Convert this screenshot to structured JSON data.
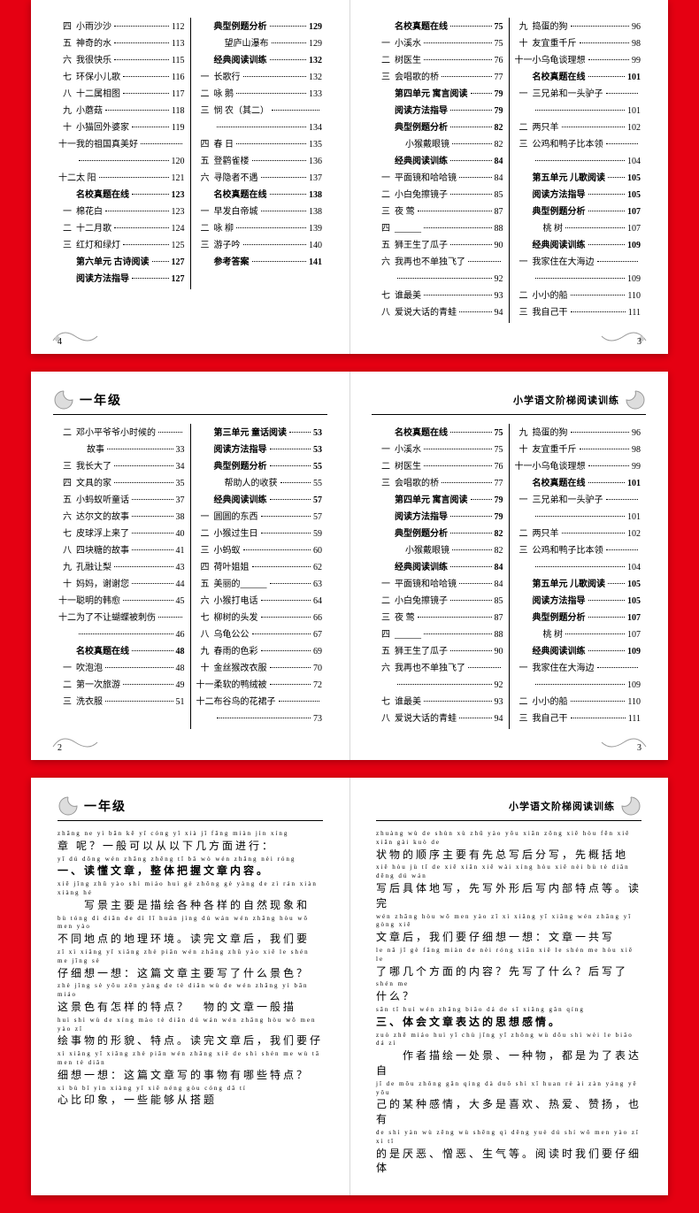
{
  "bg_color": "#e50012",
  "page_bg": "#ffffff",
  "spread1": {
    "left": {
      "page_num": "4",
      "col1": [
        {
          "n": "四",
          "t": "小雨沙沙",
          "p": "112"
        },
        {
          "n": "五",
          "t": "神奇的水",
          "p": "113"
        },
        {
          "n": "六",
          "t": "我很快乐",
          "p": "115"
        },
        {
          "n": "七",
          "t": "环保小儿歌",
          "p": "116"
        },
        {
          "n": "八",
          "t": "十二属相图",
          "p": "117"
        },
        {
          "n": "九",
          "t": "小蘑菇",
          "p": "118"
        },
        {
          "n": "十",
          "t": "小猫回外婆家",
          "p": "119"
        },
        {
          "n": "十一",
          "t": "我的祖国真美好",
          "p": ""
        },
        {
          "n": "",
          "t": "",
          "p": "120"
        },
        {
          "n": "十二",
          "t": "太 阳",
          "p": "121"
        },
        {
          "n": "",
          "t": "名校真题在线",
          "p": "123",
          "bold": true
        },
        {
          "n": "一",
          "t": "棉花白",
          "p": "123"
        },
        {
          "n": "二",
          "t": "十二月歌",
          "p": "124"
        },
        {
          "n": "三",
          "t": "红灯和绿灯",
          "p": "125"
        },
        {
          "n": "",
          "t": "第六单元 古诗阅读",
          "p": "127",
          "bold": true
        },
        {
          "n": "",
          "t": "阅读方法指导",
          "p": "127",
          "bold": true
        }
      ],
      "col2": [
        {
          "n": "",
          "t": "典型例题分析",
          "p": "129",
          "bold": true
        },
        {
          "n": "",
          "t": "望庐山瀑布",
          "p": "129",
          "indent": true
        },
        {
          "n": "",
          "t": "经典阅读训练",
          "p": "132",
          "bold": true
        },
        {
          "n": "一",
          "t": "长歌行",
          "p": "132"
        },
        {
          "n": "二",
          "t": "咏 鹅",
          "p": "133"
        },
        {
          "n": "三",
          "t": "悯 农（其二）",
          "p": ""
        },
        {
          "n": "",
          "t": "",
          "p": "134"
        },
        {
          "n": "四",
          "t": "春 日",
          "p": "135"
        },
        {
          "n": "五",
          "t": "登鹳雀楼",
          "p": "136"
        },
        {
          "n": "六",
          "t": "寻隐者不遇",
          "p": "137"
        },
        {
          "n": "",
          "t": "名校真题在线",
          "p": "138",
          "bold": true
        },
        {
          "n": "一",
          "t": "早发白帝城",
          "p": "138"
        },
        {
          "n": "二",
          "t": "咏 柳",
          "p": "139"
        },
        {
          "n": "三",
          "t": "游子吟",
          "p": "140"
        },
        {
          "n": "",
          "t": "参考答案",
          "p": "141",
          "bold": true
        }
      ]
    },
    "right": {
      "page_num": "3",
      "col1": [
        {
          "n": "",
          "t": "名校真题在线",
          "p": "75",
          "bold": true
        },
        {
          "n": "一",
          "t": "小溪水",
          "p": "75"
        },
        {
          "n": "二",
          "t": "树医生",
          "p": "76"
        },
        {
          "n": "三",
          "t": "会唱歌的桥",
          "p": "77"
        },
        {
          "n": "",
          "t": "第四单元 寓言阅读",
          "p": "79",
          "bold": true
        },
        {
          "n": "",
          "t": "阅读方法指导",
          "p": "79",
          "bold": true
        },
        {
          "n": "",
          "t": "典型例题分析",
          "p": "82",
          "bold": true
        },
        {
          "n": "",
          "t": "小猴戴眼镜",
          "p": "82",
          "indent": true
        },
        {
          "n": "",
          "t": "经典阅读训练",
          "p": "84",
          "bold": true
        },
        {
          "n": "一",
          "t": "平面镜和哈哈镜",
          "p": "84"
        },
        {
          "n": "二",
          "t": "小白兔擦镜子",
          "p": "85"
        },
        {
          "n": "三",
          "t": "夜 莺",
          "p": "87"
        },
        {
          "n": "四",
          "t": "______",
          "p": "88"
        },
        {
          "n": "五",
          "t": "狮王生了瓜子",
          "p": "90"
        },
        {
          "n": "六",
          "t": "我再也不单独飞了",
          "p": ""
        },
        {
          "n": "",
          "t": "",
          "p": "92"
        },
        {
          "n": "七",
          "t": "谁最美",
          "p": "93"
        },
        {
          "n": "八",
          "t": "爱说大话的青蛙",
          "p": "94"
        }
      ],
      "col2": [
        {
          "n": "九",
          "t": "捣蛋的狗",
          "p": "96"
        },
        {
          "n": "十",
          "t": "友宜重千斤",
          "p": "98"
        },
        {
          "n": "十一",
          "t": "小乌龟谈理想",
          "p": "99"
        },
        {
          "n": "",
          "t": "名校真题在线",
          "p": "101",
          "bold": true
        },
        {
          "n": "一",
          "t": "三兄弟和一头驴子",
          "p": ""
        },
        {
          "n": "",
          "t": "",
          "p": "101"
        },
        {
          "n": "二",
          "t": "两只羊",
          "p": "102"
        },
        {
          "n": "三",
          "t": "公鸡和鸭子比本领",
          "p": ""
        },
        {
          "n": "",
          "t": "",
          "p": "104"
        },
        {
          "n": "",
          "t": "第五单元 儿歌阅读",
          "p": "105",
          "bold": true
        },
        {
          "n": "",
          "t": "阅读方法指导",
          "p": "105",
          "bold": true
        },
        {
          "n": "",
          "t": "典型例题分析",
          "p": "107",
          "bold": true
        },
        {
          "n": "",
          "t": "桃 树",
          "p": "107",
          "indent": true
        },
        {
          "n": "",
          "t": "经典阅读训练",
          "p": "109",
          "bold": true
        },
        {
          "n": "一",
          "t": "我家住在大海边",
          "p": ""
        },
        {
          "n": "",
          "t": "",
          "p": "109"
        },
        {
          "n": "二",
          "t": "小小的船",
          "p": "110"
        },
        {
          "n": "三",
          "t": "我自己干",
          "p": "111"
        }
      ]
    }
  },
  "spread2": {
    "left": {
      "header": "一年级",
      "page_num": "2",
      "col1": [
        {
          "n": "二",
          "t": "邓小平爷爷小时候的",
          "p": ""
        },
        {
          "n": "",
          "t": "故事",
          "p": "33",
          "indent": true
        },
        {
          "n": "三",
          "t": "我长大了",
          "p": "34"
        },
        {
          "n": "四",
          "t": "文具的家",
          "p": "35"
        },
        {
          "n": "五",
          "t": "小蚂蚁听童话",
          "p": "37"
        },
        {
          "n": "六",
          "t": "达尔文的故事",
          "p": "38"
        },
        {
          "n": "七",
          "t": "皮球浮上来了",
          "p": "40"
        },
        {
          "n": "八",
          "t": "四块糖的故事",
          "p": "41"
        },
        {
          "n": "九",
          "t": "孔融让梨",
          "p": "43"
        },
        {
          "n": "十",
          "t": "妈妈，谢谢您",
          "p": "44"
        },
        {
          "n": "十一",
          "t": "聪明的韩愈",
          "p": "45"
        },
        {
          "n": "十二",
          "t": "为了不让蝴蝶被刺伤",
          "p": ""
        },
        {
          "n": "",
          "t": "",
          "p": "46"
        },
        {
          "n": "",
          "t": "名校真题在线",
          "p": "48",
          "bold": true
        },
        {
          "n": "一",
          "t": "吹泡泡",
          "p": "48"
        },
        {
          "n": "二",
          "t": "第一次旅游",
          "p": "49"
        },
        {
          "n": "三",
          "t": "洗衣服",
          "p": "51"
        }
      ],
      "col2": [
        {
          "n": "",
          "t": "第三单元 童话阅读",
          "p": "53",
          "bold": true
        },
        {
          "n": "",
          "t": "阅读方法指导",
          "p": "53",
          "bold": true
        },
        {
          "n": "",
          "t": "典型例题分析",
          "p": "55",
          "bold": true
        },
        {
          "n": "",
          "t": "帮助人的收获",
          "p": "55",
          "indent": true
        },
        {
          "n": "",
          "t": "经典阅读训练",
          "p": "57",
          "bold": true
        },
        {
          "n": "一",
          "t": "圆圆的东西",
          "p": "57"
        },
        {
          "n": "二",
          "t": "小猴过生日",
          "p": "59"
        },
        {
          "n": "三",
          "t": "小蚂蚁",
          "p": "60"
        },
        {
          "n": "四",
          "t": "荷叶姐姐",
          "p": "62"
        },
        {
          "n": "五",
          "t": "美丽的______",
          "p": "63"
        },
        {
          "n": "六",
          "t": "小猴打电话",
          "p": "64"
        },
        {
          "n": "七",
          "t": "柳树的头发",
          "p": "66"
        },
        {
          "n": "八",
          "t": "乌龟公公",
          "p": "67"
        },
        {
          "n": "九",
          "t": "春雨的色彩",
          "p": "69"
        },
        {
          "n": "十",
          "t": "金丝猴改衣服",
          "p": "70"
        },
        {
          "n": "十一",
          "t": "柔软的鸭绒被",
          "p": "72"
        },
        {
          "n": "十二",
          "t": "布谷鸟的花裙子",
          "p": ""
        },
        {
          "n": "",
          "t": "",
          "p": "73"
        }
      ]
    },
    "right": {
      "header": "小学语文阶梯阅读训练",
      "page_num": "3",
      "col1": [
        {
          "n": "",
          "t": "名校真题在线",
          "p": "75",
          "bold": true
        },
        {
          "n": "一",
          "t": "小溪水",
          "p": "75"
        },
        {
          "n": "二",
          "t": "树医生",
          "p": "76"
        },
        {
          "n": "三",
          "t": "会唱歌的桥",
          "p": "77"
        },
        {
          "n": "",
          "t": "第四单元 寓言阅读",
          "p": "79",
          "bold": true
        },
        {
          "n": "",
          "t": "阅读方法指导",
          "p": "79",
          "bold": true
        },
        {
          "n": "",
          "t": "典型例题分析",
          "p": "82",
          "bold": true
        },
        {
          "n": "",
          "t": "小猴戴眼镜",
          "p": "82",
          "indent": true
        },
        {
          "n": "",
          "t": "经典阅读训练",
          "p": "84",
          "bold": true
        },
        {
          "n": "一",
          "t": "平面镜和哈哈镜",
          "p": "84"
        },
        {
          "n": "二",
          "t": "小白兔擦镜子",
          "p": "85"
        },
        {
          "n": "三",
          "t": "夜 莺",
          "p": "87"
        },
        {
          "n": "四",
          "t": "______",
          "p": "88"
        },
        {
          "n": "五",
          "t": "狮王生了瓜子",
          "p": "90"
        },
        {
          "n": "六",
          "t": "我再也不单独飞了",
          "p": ""
        },
        {
          "n": "",
          "t": "",
          "p": "92"
        },
        {
          "n": "七",
          "t": "谁最美",
          "p": "93"
        },
        {
          "n": "八",
          "t": "爱说大话的青蛙",
          "p": "94"
        }
      ],
      "col2": [
        {
          "n": "九",
          "t": "捣蛋的狗",
          "p": "96"
        },
        {
          "n": "十",
          "t": "友宜重千斤",
          "p": "98"
        },
        {
          "n": "十一",
          "t": "小乌龟谈理想",
          "p": "99"
        },
        {
          "n": "",
          "t": "名校真题在线",
          "p": "101",
          "bold": true
        },
        {
          "n": "一",
          "t": "三兄弟和一头驴子",
          "p": ""
        },
        {
          "n": "",
          "t": "",
          "p": "101"
        },
        {
          "n": "二",
          "t": "两只羊",
          "p": "102"
        },
        {
          "n": "三",
          "t": "公鸡和鸭子比本领",
          "p": ""
        },
        {
          "n": "",
          "t": "",
          "p": "104"
        },
        {
          "n": "",
          "t": "第五单元 儿歌阅读",
          "p": "105",
          "bold": true
        },
        {
          "n": "",
          "t": "阅读方法指导",
          "p": "105",
          "bold": true
        },
        {
          "n": "",
          "t": "典型例题分析",
          "p": "107",
          "bold": true
        },
        {
          "n": "",
          "t": "桃 树",
          "p": "107",
          "indent": true
        },
        {
          "n": "",
          "t": "经典阅读训练",
          "p": "109",
          "bold": true
        },
        {
          "n": "一",
          "t": "我家住在大海边",
          "p": ""
        },
        {
          "n": "",
          "t": "",
          "p": "109"
        },
        {
          "n": "二",
          "t": "小小的船",
          "p": "110"
        },
        {
          "n": "三",
          "t": "我自己干",
          "p": "111"
        }
      ]
    }
  },
  "spread3": {
    "left": {
      "header": "一年级",
      "lines": [
        {
          "py": "zhāng ne    yì bān kě  yǐ cóng yǐ  xià  jǐ fāng miàn jìn xíng",
          "zh": "章 呢？一般可以从以下几方面进行："
        },
        {
          "py": "yī   dú dǒng wén zhāng  zhěng tǐ  bǎ wò wén zhāng nèi róng",
          "zh": "一、读懂文章，整体把握文章内容。",
          "bold": true
        },
        {
          "py": "xiě jǐng zhǔ yào shì miáo huì  gè zhǒng gè yàng de  zì  rán xiàn xiàng hé",
          "zh": "　　写景主要是描绘各种各样的自然现象和"
        },
        {
          "py": "bù tóng dì diǎn de  dì  lǐ huán jìng   dú wán wén zhāng hòu  wǒ men yào",
          "zh": "不同地点的地理环境。读完文章后，我们要"
        },
        {
          "py": "zǐ  xì xiǎng yī xiǎng  zhè piān wén zhāng zhǔ yào xiě  le shén me jǐng sè",
          "zh": "仔细想一想：这篇文章主要写了什么景色？"
        },
        {
          "py": "zhè jǐng sè yǒu zěn yàng de  tè diǎn      wù de wén zhāng yì bān miáo",
          "zh": "这景色有怎样的特点？　物的文章一般描"
        },
        {
          "py": "huì shì wù de xíng mào  tè diǎn   dú wán wén zhāng hòu  wǒ men yào zǐ",
          "zh": "绘事物的形貌、特点。读完文章后，我们要仔"
        },
        {
          "py": "xì xiǎng yī xiǎng  zhè piān wén zhāng xiě de shì shén me wù  tā  men tè diǎn",
          "zh": "细想一想：这篇文章写的事物有哪些特点？"
        },
        {
          "py": "xì  bù bǐ yìn xiàng  yī xiē néng gòu cóng dǎ  tí",
          "zh": "心比印象，一些能够从搭题"
        }
      ]
    },
    "right": {
      "header": "小学语文阶梯阅读训练",
      "lines": [
        {
          "py": "zhuàng wù de shùn xù zhǔ yào yǒu xiān zǒng xiě hòu fēn xiě  xiān gài kuò de",
          "zh": "状物的顺序主要有先总写后分写，先概括地"
        },
        {
          "py": "xiě hòu jù  tǐ  de xiě  xiān xiě wài xíng hòu xiě nèi bù  tè diǎn děng   dú wán",
          "zh": "写后具体地写，先写外形后写内部特点等。读完"
        },
        {
          "py": "wén zhāng hòu  wǒ men yào zǐ  xì xiǎng yī xiǎng  wén zhāng yī gòng xiě",
          "zh": "文章后，我们要仔细想一想：文章一共写"
        },
        {
          "py": "le  nǎ  jǐ  gè fāng miàn de nèi róng   xiān xiě  le shén me  hòu xiě  le",
          "zh": "了哪几个方面的内容？先写了什么？后写了"
        },
        {
          "py": "shén me",
          "zh": "什么？"
        },
        {
          "py": "sān  tǐ huì wén zhāng biǎo dá de  sī xiǎng gǎn qíng",
          "zh": "三、体会文章表达的思想感情。",
          "bold": true
        },
        {
          "py": "zuò zhě miáo huì  yī chù jǐng  yī zhǒng wù  dōu shì wèi le biǎo dá  zì",
          "zh": "　　作者描绘一处景、一种物，都是为了表达自"
        },
        {
          "py": "jǐ  de mǒu zhǒng gǎn qíng  dà duō shì xǐ huan  rè  ài  zàn yáng  yě yǒu",
          "zh": "己的某种感情，大多是喜欢、热爱、赞扬，也有"
        },
        {
          "py": "de shì yàn wù  zēng wù  shēng qì děng   yuè dú shí wǒ men yào zǐ  xì  tǐ",
          "zh": "的是厌恶、憎恶、生气等。阅读时我们要仔细体"
        }
      ]
    }
  }
}
